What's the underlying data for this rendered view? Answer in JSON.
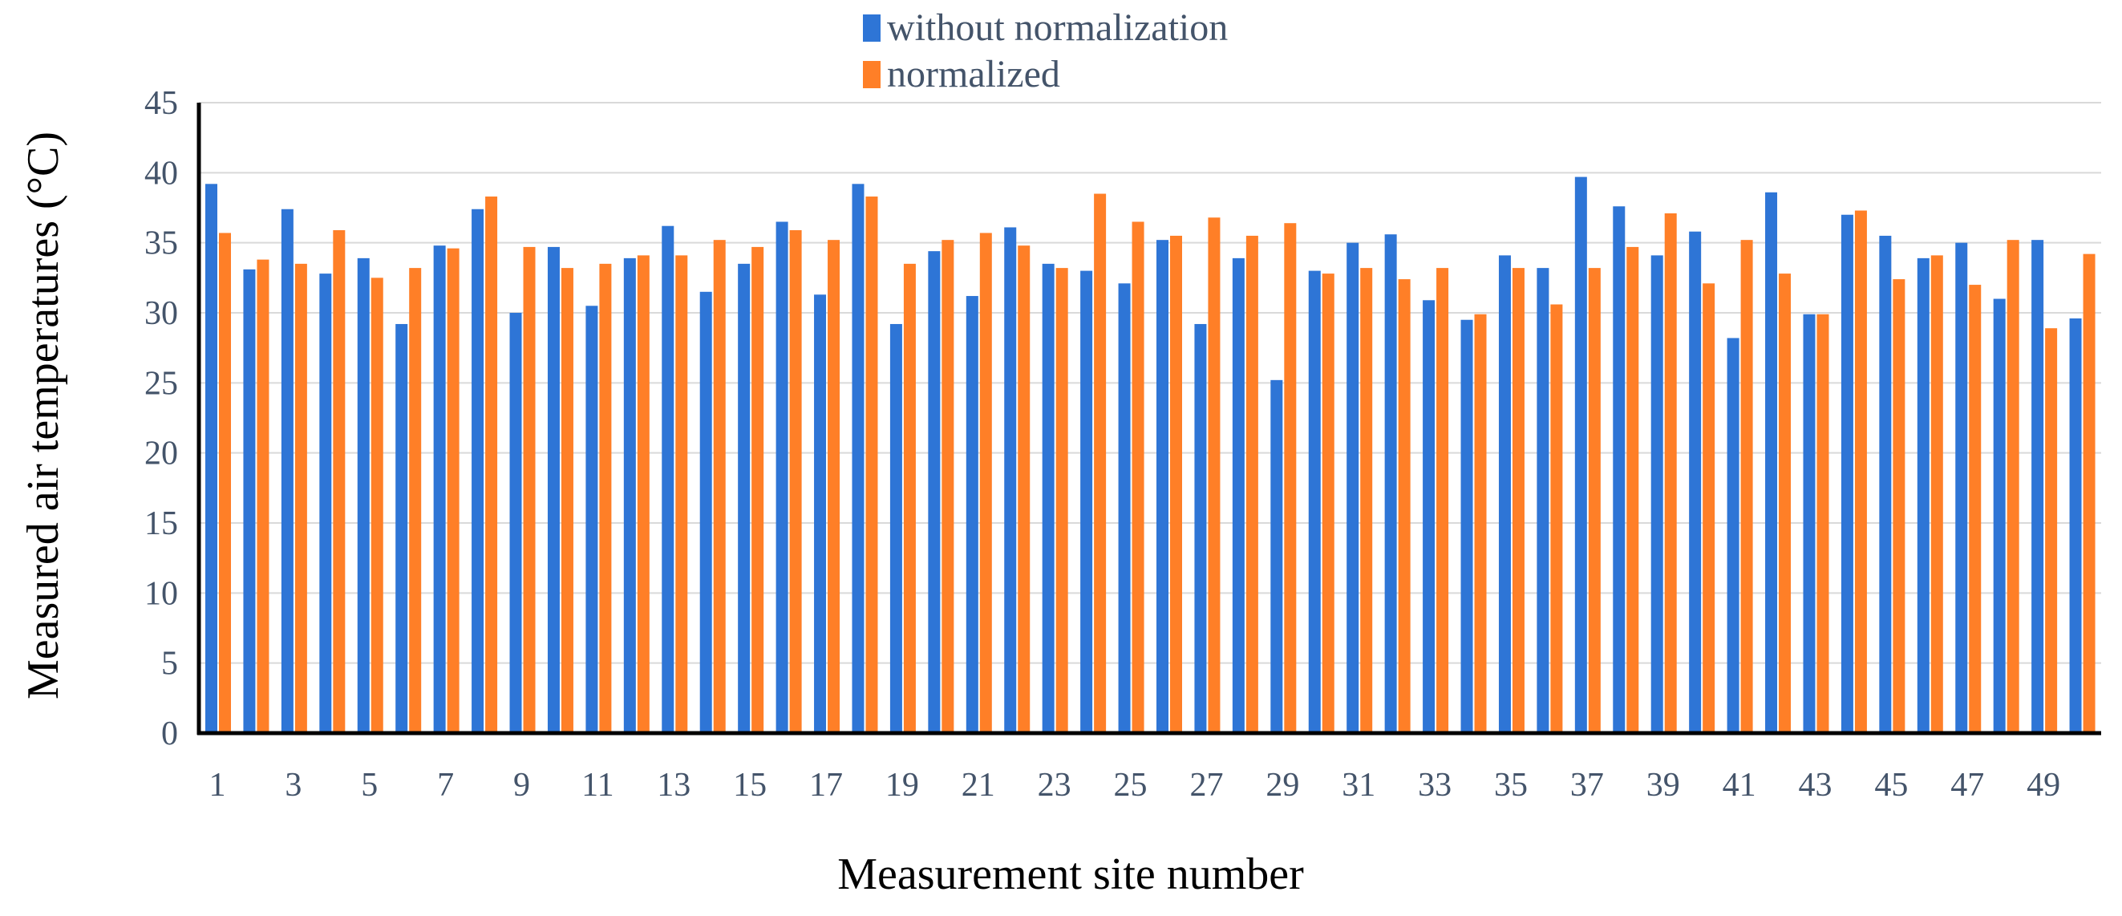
{
  "chart_data": {
    "type": "bar",
    "xlabel": "Measurement site number",
    "ylabel": "Measured air temperatures (°C)",
    "ylim": [
      0,
      45
    ],
    "yticks": [
      0,
      5,
      10,
      15,
      20,
      25,
      30,
      35,
      40,
      45
    ],
    "grid": true,
    "legend_position": "top",
    "categories": [
      1,
      2,
      3,
      4,
      5,
      6,
      7,
      8,
      9,
      10,
      11,
      12,
      13,
      14,
      15,
      16,
      17,
      18,
      19,
      20,
      21,
      22,
      23,
      24,
      25,
      26,
      27,
      28,
      29,
      30,
      31,
      32,
      33,
      34,
      35,
      36,
      37,
      38,
      39,
      40,
      41,
      42,
      43,
      44,
      45,
      46,
      47,
      48,
      49,
      50
    ],
    "xticklabels": [
      "1",
      "3",
      "5",
      "7",
      "9",
      "11",
      "13",
      "15",
      "17",
      "19",
      "21",
      "23",
      "25",
      "27",
      "29",
      "31",
      "33",
      "35",
      "37",
      "39",
      "41",
      "43",
      "45",
      "47",
      "49"
    ],
    "series": [
      {
        "name": "without normalization",
        "color": "#2e75d6",
        "values": [
          39.2,
          33.1,
          37.4,
          32.8,
          33.9,
          29.2,
          34.8,
          37.4,
          30.0,
          34.7,
          30.5,
          33.9,
          36.2,
          31.5,
          33.5,
          36.5,
          31.3,
          39.2,
          29.2,
          34.4,
          31.2,
          36.1,
          33.5,
          33.0,
          32.1,
          35.2,
          29.2,
          33.9,
          25.2,
          33.0,
          35.0,
          35.6,
          30.9,
          29.5,
          34.1,
          33.2,
          39.7,
          37.6,
          34.1,
          35.8,
          28.2,
          38.6,
          29.9,
          37.0,
          35.5,
          33.9,
          35.0,
          31.0,
          35.2,
          29.6
        ]
      },
      {
        "name": "normalized",
        "color": "#ff7f27",
        "values": [
          35.7,
          33.8,
          33.5,
          35.9,
          32.5,
          33.2,
          34.6,
          38.3,
          34.7,
          33.2,
          33.5,
          34.1,
          34.1,
          35.2,
          34.7,
          35.9,
          35.2,
          38.3,
          33.5,
          35.2,
          35.7,
          34.8,
          33.2,
          38.5,
          36.5,
          35.5,
          36.8,
          35.5,
          36.4,
          32.8,
          33.2,
          32.4,
          33.2,
          29.9,
          33.2,
          30.6,
          33.2,
          34.7,
          37.1,
          32.1,
          35.2,
          32.8,
          29.9,
          37.3,
          32.4,
          34.1,
          32.0,
          35.2,
          28.9,
          34.2
        ]
      }
    ]
  }
}
